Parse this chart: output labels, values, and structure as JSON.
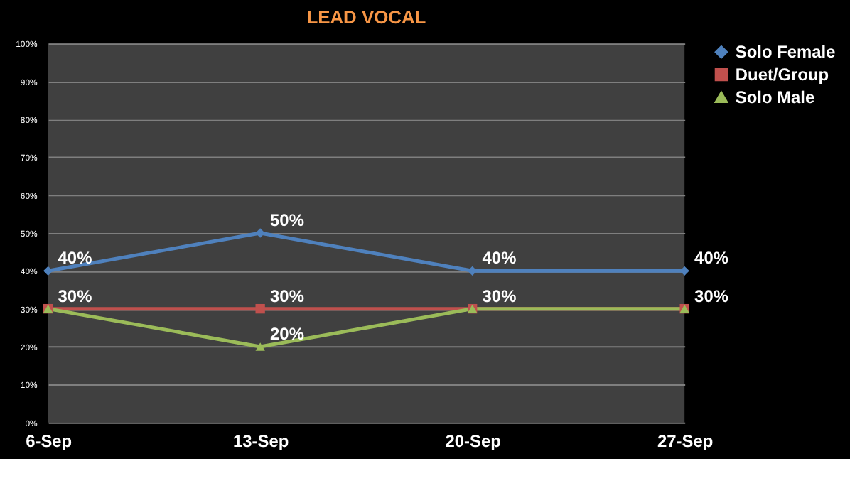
{
  "chart_data": {
    "type": "line",
    "title": "LEAD VOCAL",
    "categories": [
      "6-Sep",
      "13-Sep",
      "20-Sep",
      "27-Sep"
    ],
    "series": [
      {
        "name": "Solo Female",
        "color": "#4f81bd",
        "marker": "diamond",
        "values": [
          40,
          50,
          40,
          40
        ],
        "value_labels": [
          "40%",
          "50%",
          "40%",
          "40%"
        ]
      },
      {
        "name": "Duet/Group",
        "color": "#c0504d",
        "marker": "square",
        "values": [
          30,
          30,
          30,
          30
        ],
        "value_labels": [
          null,
          "30%",
          null,
          null
        ]
      },
      {
        "name": "Solo Male",
        "color": "#9bbb59",
        "marker": "triangle",
        "values": [
          30,
          20,
          30,
          30
        ],
        "value_labels": [
          "30%",
          "20%",
          "30%",
          "30%"
        ]
      }
    ],
    "ylim": [
      0,
      100
    ],
    "yticks": [
      {
        "value": 0,
        "label": "0%"
      },
      {
        "value": 10,
        "label": "10%"
      },
      {
        "value": 20,
        "label": "20%"
      },
      {
        "value": 30,
        "label": "30%"
      },
      {
        "value": 40,
        "label": "40%"
      },
      {
        "value": 50,
        "label": "50%"
      },
      {
        "value": 60,
        "label": "60%"
      },
      {
        "value": 70,
        "label": "70%"
      },
      {
        "value": 80,
        "label": "80%"
      },
      {
        "value": 90,
        "label": "90%"
      },
      {
        "value": 100,
        "label": "100%"
      }
    ],
    "grid": "y",
    "legend": "right",
    "line_style": "solid"
  }
}
